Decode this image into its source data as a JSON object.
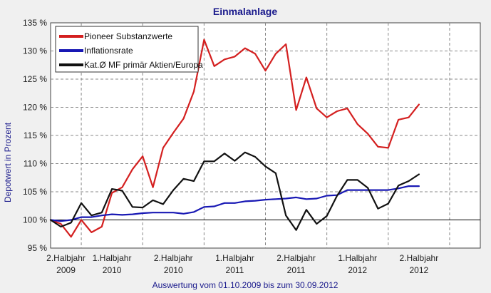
{
  "chart_data": {
    "type": "line",
    "title": "Einmalanlage",
    "xlabel": "Auswertung vom 01.10.2009 bis zum 30.09.2012",
    "ylabel": "Depotwert in Prozent",
    "ylim": [
      95,
      135
    ],
    "y_ticks": [
      95,
      100,
      105,
      110,
      115,
      120,
      125,
      130,
      135
    ],
    "y_tick_labels": [
      "95 %",
      "100 %",
      "105 %",
      "110 %",
      "115 %",
      "120 %",
      "125 %",
      "130 %",
      "135 %"
    ],
    "grid": true,
    "legend_position": "top-left",
    "x_periods": [
      {
        "line1": "2.Halbjahr",
        "line2": "2009"
      },
      {
        "line1": "1.Halbjahr",
        "line2": "2010"
      },
      {
        "line1": "2.Halbjahr",
        "line2": "2010"
      },
      {
        "line1": "1.Halbjahr",
        "line2": "2011"
      },
      {
        "line1": "2.Halbjahr",
        "line2": "2011"
      },
      {
        "line1": "1.Halbjahr",
        "line2": "2012"
      },
      {
        "line1": "2.Halbjahr",
        "line2": "2012"
      }
    ],
    "x_month_range": [
      0,
      42
    ],
    "x_period_boundaries": [
      3,
      9,
      15,
      21,
      27,
      33,
      39
    ],
    "series": [
      {
        "name": "Pioneer Substanzwerte",
        "color": "#d42020",
        "x": [
          0,
          1,
          2,
          3,
          4,
          5,
          6,
          7,
          8,
          9,
          10,
          11,
          12,
          13,
          14,
          15,
          16,
          17,
          18,
          19,
          20,
          21,
          22,
          23,
          24,
          25,
          26,
          27,
          28,
          29,
          30,
          31,
          32,
          33,
          34,
          35,
          36
        ],
        "values": [
          100,
          99.3,
          97,
          100,
          97.8,
          98.8,
          104.8,
          105.8,
          109,
          111.3,
          105.8,
          112.8,
          115.5,
          118,
          122.8,
          132,
          127.3,
          128.5,
          129,
          130.5,
          129.5,
          126.5,
          129.5,
          131.2,
          119.5,
          125.3,
          119.8,
          118.2,
          119.3,
          119.8,
          117,
          115.3,
          113,
          112.8,
          117.8,
          118.2,
          120.5
        ]
      },
      {
        "name": "Inflationsrate",
        "color": "#1818b4",
        "x": [
          0,
          1,
          2,
          3,
          4,
          5,
          6,
          7,
          8,
          9,
          10,
          11,
          12,
          13,
          14,
          15,
          16,
          17,
          18,
          19,
          20,
          21,
          22,
          23,
          24,
          25,
          26,
          27,
          28,
          29,
          30,
          31,
          32,
          33,
          34,
          35,
          36
        ],
        "values": [
          100,
          99.8,
          100,
          100.5,
          100.5,
          100.8,
          101,
          100.9,
          101,
          101.2,
          101.3,
          101.3,
          101.3,
          101.1,
          101.4,
          102.3,
          102.4,
          103,
          103,
          103.3,
          103.4,
          103.6,
          103.7,
          103.8,
          104,
          103.7,
          103.8,
          104.3,
          104.4,
          105.3,
          105.3,
          105.3,
          105.3,
          105.3,
          105.6,
          106,
          106
        ]
      },
      {
        "name": "Kat.Ø MF primär Aktien/Europa",
        "color": "#111111",
        "x": [
          0,
          1,
          2,
          3,
          4,
          5,
          6,
          7,
          8,
          9,
          10,
          11,
          12,
          13,
          14,
          15,
          16,
          17,
          18,
          19,
          20,
          21,
          22,
          23,
          24,
          25,
          26,
          27,
          28,
          29,
          30,
          31,
          32,
          33,
          34,
          35,
          36
        ],
        "values": [
          100,
          98.8,
          99.5,
          103,
          100.8,
          101.3,
          105.5,
          105.2,
          102.3,
          102.2,
          103.5,
          102.8,
          105.3,
          107.3,
          106.9,
          110.4,
          110.4,
          111.8,
          110.5,
          112,
          111.2,
          109.5,
          108.3,
          100.8,
          98.2,
          101.8,
          99.3,
          100.7,
          104.3,
          107.1,
          107.1,
          105.7,
          102,
          102.9,
          106.1,
          106.9,
          108.1
        ]
      }
    ]
  }
}
